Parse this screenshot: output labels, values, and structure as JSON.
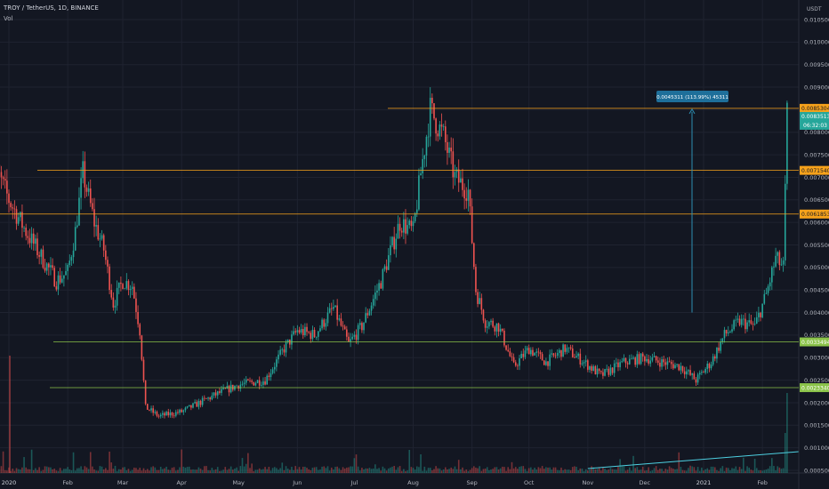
{
  "header": {
    "title": "TROY / TetherUS, 1D, BINANCE",
    "vol_label": "Vol"
  },
  "axis": {
    "currency": "USDT"
  },
  "colors": {
    "up": "#26a69a",
    "down": "#ef5350",
    "bg": "#131722",
    "grid": "#1f2330",
    "hline_orange": "#f7a21b",
    "hline_green": "#8bc34a",
    "trend": "#4dd0e1",
    "measure": "#2d8fb3"
  },
  "chart_data": {
    "type": "candlestick",
    "title": "TROY / TetherUS, 1D, BINANCE",
    "y_unit": "USDT",
    "ylim": [
      0.0004,
      0.0108
    ],
    "y_ticks": [
      "0.0105000",
      "0.0100000",
      "0.0095000",
      "0.0090000",
      "0.0085000",
      "0.0080000",
      "0.0075000",
      "0.0070000",
      "0.0065000",
      "0.0060000",
      "0.0055000",
      "0.0050000",
      "0.0045000",
      "0.0040000",
      "0.0035000",
      "0.0030000",
      "0.0025000",
      "0.0020000",
      "0.0015000",
      "0.0010000",
      "0.0005000"
    ],
    "x_ticks": [
      "2020",
      "Feb",
      "Mar",
      "Apr",
      "May",
      "Jun",
      "Jul",
      "Aug",
      "Sep",
      "Oct",
      "Nov",
      "Dec",
      "2021",
      "Feb"
    ],
    "price_path": [
      [
        "2019-12-22",
        0.0075
      ],
      [
        "2020-01-01",
        0.0065
      ],
      [
        "2020-01-10",
        0.0058
      ],
      [
        "2020-01-20",
        0.0051
      ],
      [
        "2020-01-26",
        0.0047
      ],
      [
        "2020-02-01",
        0.0049
      ],
      [
        "2020-02-05",
        0.0058
      ],
      [
        "2020-02-09",
        0.0071
      ],
      [
        "2020-02-15",
        0.006
      ],
      [
        "2020-02-20",
        0.0054
      ],
      [
        "2020-02-25",
        0.0042
      ],
      [
        "2020-03-01",
        0.0047
      ],
      [
        "2020-03-06",
        0.0046
      ],
      [
        "2020-03-10",
        0.0036
      ],
      [
        "2020-03-13",
        0.0019
      ],
      [
        "2020-03-20",
        0.0017
      ],
      [
        "2020-04-01",
        0.0018
      ],
      [
        "2020-04-20",
        0.0022
      ],
      [
        "2020-05-01",
        0.0024
      ],
      [
        "2020-05-15",
        0.0025
      ],
      [
        "2020-05-25",
        0.0032
      ],
      [
        "2020-06-01",
        0.0036
      ],
      [
        "2020-06-10",
        0.0035
      ],
      [
        "2020-06-20",
        0.0041
      ],
      [
        "2020-06-28",
        0.0033
      ],
      [
        "2020-07-05",
        0.0037
      ],
      [
        "2020-07-15",
        0.0047
      ],
      [
        "2020-07-25",
        0.006
      ],
      [
        "2020-08-01",
        0.0058
      ],
      [
        "2020-08-05",
        0.0071
      ],
      [
        "2020-08-10",
        0.0085
      ],
      [
        "2020-08-17",
        0.0079
      ],
      [
        "2020-08-23",
        0.007
      ],
      [
        "2020-08-30",
        0.0067
      ],
      [
        "2020-09-03",
        0.0045
      ],
      [
        "2020-09-08",
        0.0038
      ],
      [
        "2020-09-15",
        0.0037
      ],
      [
        "2020-09-23",
        0.0028
      ],
      [
        "2020-10-01",
        0.0032
      ],
      [
        "2020-10-10",
        0.0029
      ],
      [
        "2020-10-20",
        0.0032
      ],
      [
        "2020-10-30",
        0.0029
      ],
      [
        "2020-11-08",
        0.0026
      ],
      [
        "2020-11-20",
        0.0029
      ],
      [
        "2020-12-01",
        0.003
      ],
      [
        "2020-12-10",
        0.0029
      ],
      [
        "2020-12-20",
        0.0028
      ],
      [
        "2020-12-28",
        0.0025
      ],
      [
        "2021-01-05",
        0.0029
      ],
      [
        "2021-01-12",
        0.0035
      ],
      [
        "2021-01-20",
        0.0038
      ],
      [
        "2021-01-28",
        0.0037
      ],
      [
        "2021-02-03",
        0.0044
      ],
      [
        "2021-02-08",
        0.0052
      ],
      [
        "2021-02-12",
        0.005
      ],
      [
        "2021-02-14",
        0.0084
      ]
    ],
    "horizontal_levels": [
      {
        "label": "0.0085304",
        "value": 0.0085304,
        "color": "orange"
      },
      {
        "label": "0.0071540",
        "value": 0.007154,
        "color": "orange"
      },
      {
        "label": "0.0061853",
        "value": 0.0061853,
        "color": "orange"
      },
      {
        "label": "0.0033494",
        "value": 0.0033494,
        "color": "green"
      },
      {
        "label": "0.0023340",
        "value": 0.002334,
        "color": "green"
      }
    ],
    "last_price": {
      "label": "0.0083513",
      "value": 0.0083513,
      "countdown": "06:32:03"
    },
    "measure": {
      "label": "0.0045311 (113.99%) 45311",
      "from": 0.004,
      "to": 0.0085304
    },
    "trendline": {
      "from": [
        "2020-11-01",
        0.00053
      ],
      "to": [
        "2021-02-20",
        0.00088
      ]
    }
  }
}
